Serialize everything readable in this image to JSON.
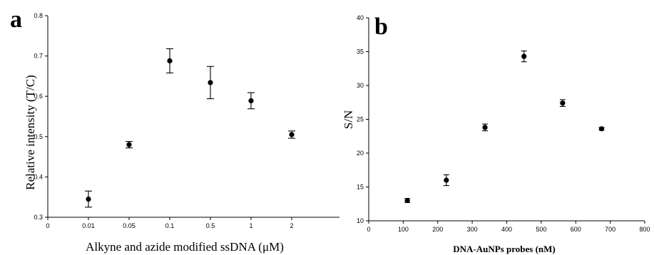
{
  "chart_data": [
    {
      "type": "scatter",
      "panel_label": "a",
      "xlabel": "Alkyne and azide modified ssDNA (μM)",
      "ylabel": "Relative intensity (T/C)",
      "x_tick_labels": [
        "0",
        "0.01",
        "0.05",
        "0.1",
        "0.5",
        "1",
        "2"
      ],
      "y_ticks": [
        0.3,
        0.4,
        0.5,
        0.6,
        0.7,
        0.8
      ],
      "y_tick_labels": [
        "0.3",
        "0.4",
        "0.5",
        "0.6",
        "0.7",
        "0.8"
      ],
      "ylim": [
        0.3,
        0.8
      ],
      "grid": false,
      "points": [
        {
          "x": "0.01",
          "y": 0.345,
          "err": 0.02
        },
        {
          "x": "0.05",
          "y": 0.48,
          "err": 0.008
        },
        {
          "x": "0.1",
          "y": 0.688,
          "err": 0.03
        },
        {
          "x": "0.5",
          "y": 0.634,
          "err": 0.04
        },
        {
          "x": "1",
          "y": 0.589,
          "err": 0.02
        },
        {
          "x": "2",
          "y": 0.505,
          "err": 0.009
        }
      ]
    },
    {
      "type": "scatter",
      "panel_label": "b",
      "xlabel": "DNA-AuNPs probes (nM)",
      "ylabel": "S/N",
      "x_ticks": [
        0,
        100,
        200,
        300,
        400,
        500,
        600,
        700,
        800
      ],
      "x_tick_labels": [
        "0",
        "100",
        "200",
        "300",
        "400",
        "500",
        "600",
        "700",
        "800"
      ],
      "y_ticks": [
        10,
        15,
        20,
        25,
        30,
        35,
        40
      ],
      "y_tick_labels": [
        "10",
        "15",
        "20",
        "25",
        "30",
        "35",
        "40"
      ],
      "xlim": [
        0,
        800
      ],
      "ylim": [
        10,
        40
      ],
      "grid": false,
      "points": [
        {
          "x": 112,
          "y": 13.0,
          "err": 0.3
        },
        {
          "x": 225,
          "y": 16.0,
          "err": 0.8
        },
        {
          "x": 337,
          "y": 23.8,
          "err": 0.5
        },
        {
          "x": 450,
          "y": 34.3,
          "err": 0.8
        },
        {
          "x": 562,
          "y": 27.4,
          "err": 0.5
        },
        {
          "x": 675,
          "y": 23.6,
          "err": 0.2
        }
      ]
    }
  ]
}
